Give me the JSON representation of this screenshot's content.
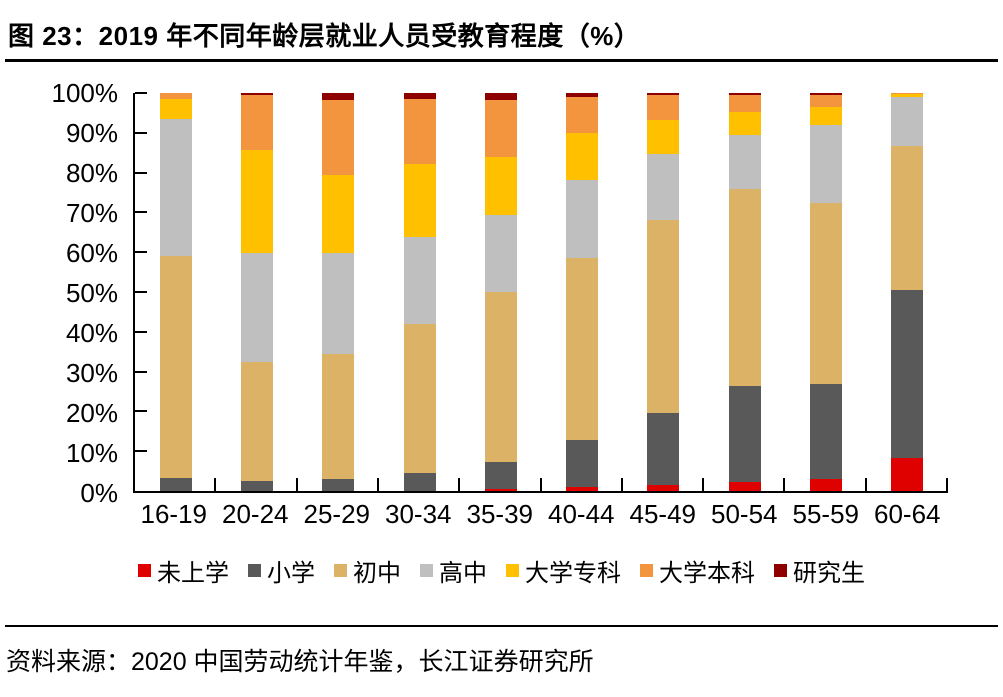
{
  "figure": {
    "title": "图 23：2019 年不同年龄层就业人员受教育程度（%）",
    "source": "资料来源：2020 中国劳动统计年鉴，长江证券研究所"
  },
  "chart_data": {
    "type": "bar",
    "stacked": true,
    "orientation": "vertical",
    "unit": "%",
    "title": "图 23：2019 年不同年龄层就业人员受教育程度（%）",
    "categories": [
      "16-19",
      "20-24",
      "25-29",
      "30-34",
      "35-39",
      "40-44",
      "45-49",
      "50-54",
      "55-59",
      "60-64"
    ],
    "series": [
      {
        "name": "未上学",
        "color": "#df0000",
        "values": [
          0,
          0,
          0,
          0,
          0.4,
          0.9,
          1.4,
          2.2,
          3.0,
          8.2
        ]
      },
      {
        "name": "小学",
        "color": "#595959",
        "values": [
          3.3,
          2.5,
          3.0,
          4.6,
          6.8,
          11.9,
          18.1,
          24.3,
          24.0,
          42.4
        ]
      },
      {
        "name": "初中",
        "color": "#dbb266",
        "values": [
          55.7,
          30.0,
          31.5,
          37.4,
          42.8,
          45.8,
          48.5,
          49.5,
          45.3,
          36.0
        ]
      },
      {
        "name": "高中",
        "color": "#bfbfbf",
        "values": [
          34.4,
          27.3,
          25.2,
          21.8,
          19.3,
          19.5,
          16.8,
          13.5,
          19.7,
          12.3
        ]
      },
      {
        "name": "大学专科",
        "color": "#ffc000",
        "values": [
          5.0,
          26.0,
          19.7,
          18.4,
          14.7,
          11.8,
          8.4,
          5.8,
          4.6,
          0.8
        ]
      },
      {
        "name": "大学本科",
        "color": "#f2953e",
        "values": [
          1.6,
          13.7,
          18.8,
          16.2,
          14.2,
          9.1,
          6.2,
          4.2,
          3.0,
          0.3
        ]
      },
      {
        "name": "研究生",
        "color": "#8e0000",
        "values": [
          0,
          0.5,
          1.8,
          1.6,
          1.8,
          1.0,
          0.6,
          0.5,
          0.4,
          0
        ]
      }
    ],
    "y_axis": {
      "min": 0,
      "max": 100,
      "tick_step": 10,
      "tick_labels": [
        "100%",
        "90%",
        "80%",
        "70%",
        "60%",
        "50%",
        "40%",
        "30%",
        "20%",
        "10%",
        "0%"
      ]
    },
    "x_axis": {
      "label": ""
    },
    "legend_position": "bottom",
    "grid": false
  }
}
